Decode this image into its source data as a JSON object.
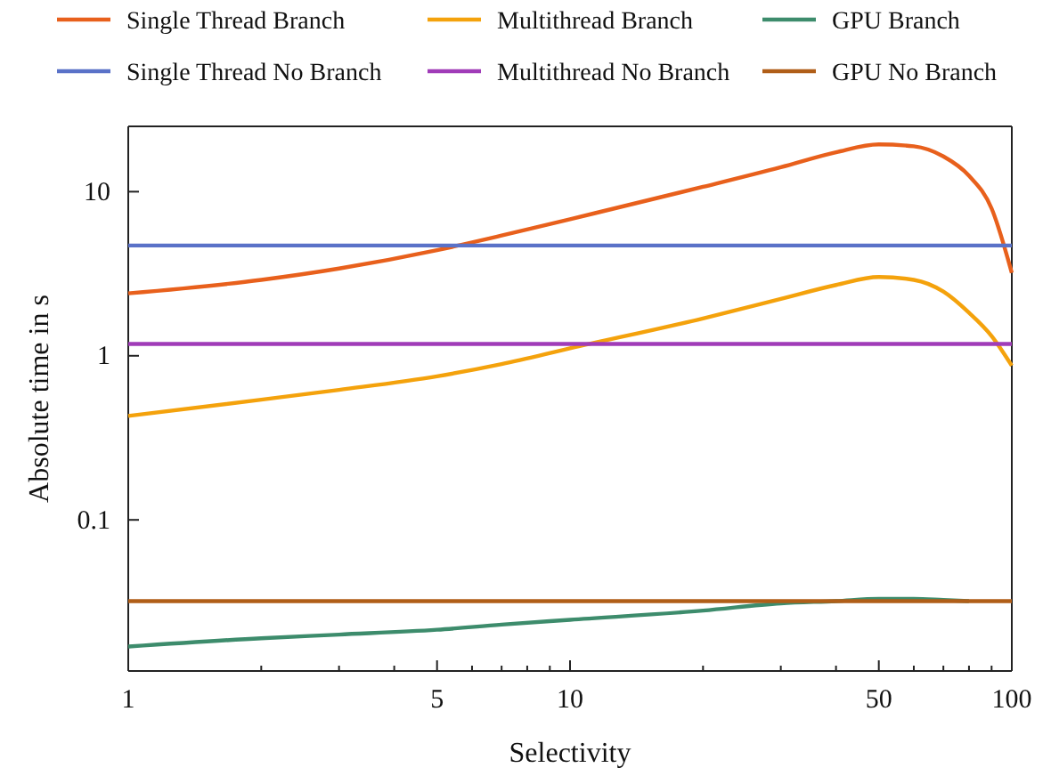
{
  "chart_data": {
    "type": "line",
    "xlabel": "Selectivity",
    "ylabel": "Absolute time in s",
    "log": "xy",
    "xlim": [
      1,
      100
    ],
    "ylim": [
      0.012,
      25
    ],
    "xticks": [
      1,
      {
        "value": 2,
        "label": null
      },
      {
        "value": 3,
        "label": null
      },
      {
        "value": 4,
        "label": null
      },
      5,
      {
        "value": 6,
        "label": null
      },
      {
        "value": 7,
        "label": null
      },
      {
        "value": 8,
        "label": null
      },
      {
        "value": 9,
        "label": null
      },
      10,
      {
        "value": 20,
        "label": null
      },
      {
        "value": 30,
        "label": null
      },
      {
        "value": 40,
        "label": null
      },
      50,
      {
        "value": 60,
        "label": null
      },
      {
        "value": 70,
        "label": null
      },
      {
        "value": 80,
        "label": null
      },
      {
        "value": 90,
        "label": null
      },
      100
    ],
    "yticks": [
      0.1,
      1,
      10
    ],
    "grid": false,
    "legend": "top",
    "line_style": "solid",
    "marker": "none",
    "x": [
      1,
      2,
      3,
      5,
      7,
      10,
      20,
      30,
      40,
      50,
      60,
      70,
      80,
      90,
      100
    ],
    "series": [
      {
        "name": "Single Thread Branch",
        "color": "#e8601c",
        "values": [
          2.4,
          2.9,
          3.4,
          4.4,
          5.4,
          6.8,
          10.7,
          14.1,
          17.4,
          19.4,
          18.9,
          16.4,
          12.5,
          7.9,
          3.2
        ]
      },
      {
        "name": "Multithread Branch",
        "color": "#f4a20c",
        "values": [
          0.43,
          0.54,
          0.62,
          0.75,
          0.89,
          1.11,
          1.69,
          2.22,
          2.7,
          3.02,
          2.9,
          2.46,
          1.83,
          1.32,
          0.87
        ]
      },
      {
        "name": "GPU Branch",
        "color": "#3d8c6c",
        "values": [
          0.0169,
          0.019,
          0.02,
          0.0214,
          0.023,
          0.0246,
          0.028,
          0.031,
          0.032,
          0.033,
          0.033,
          0.0325,
          0.032,
          null,
          null
        ]
      },
      {
        "name": "Single Thread No Branch",
        "color": "#5a72c8",
        "values": [
          4.7,
          4.7,
          4.7,
          4.7,
          4.7,
          4.7,
          4.7,
          4.7,
          4.7,
          4.7,
          4.7,
          4.7,
          4.7,
          4.7,
          4.7
        ]
      },
      {
        "name": "Multithread No Branch",
        "color": "#a03cb8",
        "values": [
          1.18,
          1.18,
          1.18,
          1.18,
          1.18,
          1.18,
          1.18,
          1.18,
          1.18,
          1.18,
          1.18,
          1.18,
          1.18,
          1.18,
          1.18
        ]
      },
      {
        "name": "GPU No Branch",
        "color": "#b05e18",
        "values": [
          0.032,
          0.032,
          0.032,
          0.032,
          0.032,
          0.032,
          0.032,
          0.032,
          0.032,
          0.032,
          0.032,
          0.032,
          0.032,
          0.032,
          0.032
        ]
      }
    ]
  }
}
